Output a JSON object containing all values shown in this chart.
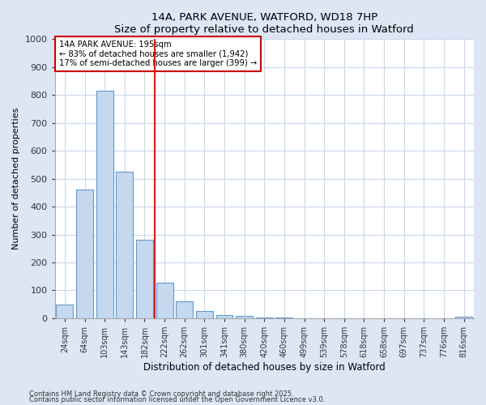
{
  "title": "14A, PARK AVENUE, WATFORD, WD18 7HP",
  "subtitle": "Size of property relative to detached houses in Watford",
  "xlabel": "Distribution of detached houses by size in Watford",
  "ylabel": "Number of detached properties",
  "categories": [
    "24sqm",
    "64sqm",
    "103sqm",
    "143sqm",
    "182sqm",
    "222sqm",
    "262sqm",
    "301sqm",
    "341sqm",
    "380sqm",
    "420sqm",
    "460sqm",
    "499sqm",
    "539sqm",
    "578sqm",
    "618sqm",
    "658sqm",
    "697sqm",
    "737sqm",
    "776sqm",
    "816sqm"
  ],
  "values": [
    50,
    462,
    815,
    525,
    280,
    128,
    60,
    25,
    10,
    8,
    2,
    2,
    0,
    0,
    0,
    0,
    0,
    0,
    0,
    0,
    5
  ],
  "bar_color": "#c5d8ee",
  "bar_edge_color": "#5b9bd5",
  "red_line_index": 4,
  "annotation_text": "14A PARK AVENUE: 195sqm\n← 83% of detached houses are smaller (1,942)\n17% of semi-detached houses are larger (399) →",
  "annotation_box_color": "#ffffff",
  "annotation_box_edge_color": "#cc0000",
  "ylim": [
    0,
    1000
  ],
  "yticks": [
    0,
    100,
    200,
    300,
    400,
    500,
    600,
    700,
    800,
    900,
    1000
  ],
  "footer1": "Contains HM Land Registry data © Crown copyright and database right 2025.",
  "footer2": "Contains public sector information licensed under the Open Government Licence v3.0.",
  "bg_color": "#dce6f5",
  "plot_bg_color": "#ffffff"
}
